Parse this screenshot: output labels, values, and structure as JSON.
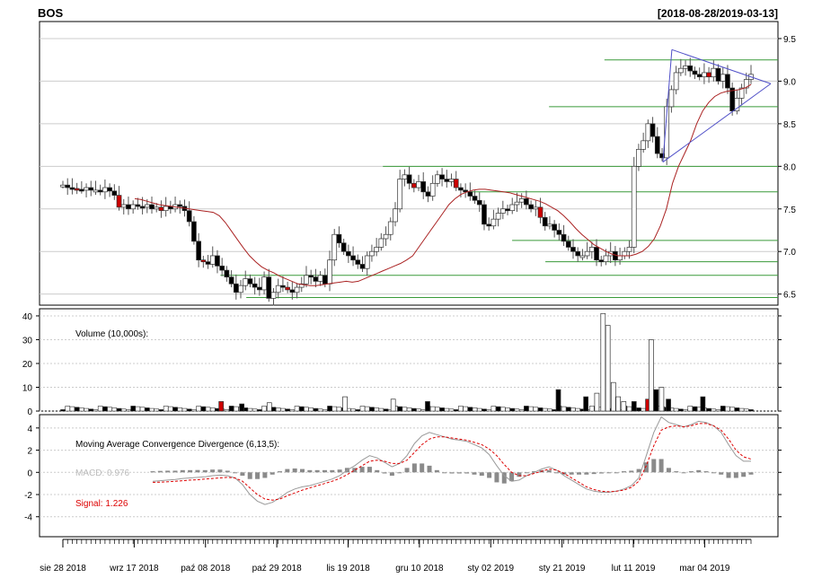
{
  "header": {
    "symbol": "BOS",
    "range": "[2018-08-28/2019-03-13]"
  },
  "chart_data": {
    "type": "candlestick",
    "title": "BOS",
    "date_range": "[2018-08-28/2019-03-13]",
    "x_tick_labels": [
      "sie 28 2018",
      "wrz 17 2018",
      "paź 08 2018",
      "paź 29 2018",
      "lis 19 2018",
      "gru 10 2018",
      "sty 02 2019",
      "sty 21 2019",
      "lut 11 2019",
      "mar 04 2019"
    ],
    "price_panel": {
      "ylim": [
        6.37,
        9.7
      ],
      "y_ticks": [
        6.5,
        7.0,
        7.5,
        8.0,
        8.5,
        9.0,
        9.5
      ],
      "y_tick_labels": [
        "6.5",
        "7.0",
        "7.5",
        "8.0",
        "8.5",
        "9.0",
        "9.5"
      ],
      "grid": true,
      "closes": [
        7.78,
        7.75,
        7.74,
        7.73,
        7.72,
        7.75,
        7.72,
        7.72,
        7.7,
        7.75,
        7.71,
        7.66,
        7.52,
        7.55,
        7.5,
        7.55,
        7.53,
        7.52,
        7.55,
        7.5,
        7.52,
        7.48,
        7.53,
        7.5,
        7.55,
        7.53,
        7.48,
        7.35,
        7.12,
        6.9,
        6.88,
        6.85,
        6.95,
        6.83,
        6.78,
        6.7,
        6.62,
        6.52,
        6.6,
        6.68,
        6.62,
        6.58,
        6.55,
        6.7,
        6.45,
        6.52,
        6.6,
        6.58,
        6.55,
        6.52,
        6.58,
        6.62,
        6.72,
        6.7,
        6.65,
        6.72,
        6.62,
        6.9,
        7.2,
        7.1,
        7.0,
        6.95,
        6.9,
        6.85,
        6.8,
        6.95,
        7.0,
        7.05,
        7.15,
        7.2,
        7.35,
        7.5,
        7.85,
        7.9,
        7.8,
        7.75,
        7.82,
        7.7,
        7.65,
        7.8,
        7.9,
        7.85,
        7.82,
        7.85,
        7.75,
        7.72,
        7.7,
        7.65,
        7.6,
        7.55,
        7.32,
        7.3,
        7.38,
        7.45,
        7.5,
        7.48,
        7.55,
        7.58,
        7.62,
        7.55,
        7.5,
        7.52,
        7.4,
        7.3,
        7.32,
        7.25,
        7.2,
        7.12,
        7.05,
        7.0,
        6.95,
        6.95,
        7.0,
        7.05,
        6.9,
        6.88,
        6.95,
        7.0,
        6.9,
        6.95,
        7.0,
        7.05,
        8.0,
        8.2,
        8.3,
        8.5,
        8.35,
        8.15,
        8.1,
        8.7,
        8.9,
        9.1,
        9.15,
        9.18,
        9.12,
        9.08,
        9.05,
        9.1,
        9.05,
        9.15,
        9.0,
        9.08,
        8.92,
        8.65,
        8.8,
        8.92,
        9.02,
        9.08
      ],
      "signal_line": [
        7.62,
        7.61,
        7.59,
        7.57,
        7.55,
        7.54,
        7.53,
        7.52,
        7.51,
        7.5,
        7.49,
        7.48,
        7.47,
        7.46,
        7.42,
        7.34,
        7.24,
        7.14,
        7.04,
        6.95,
        6.88,
        6.82,
        6.78,
        6.75,
        6.71,
        6.68,
        6.65,
        6.62,
        6.61,
        6.6,
        6.6,
        6.61,
        6.62,
        6.63,
        6.64,
        6.65,
        6.64,
        6.65,
        6.68,
        6.71,
        6.74,
        6.77,
        6.8,
        6.83,
        6.86,
        6.9,
        6.95,
        7.05,
        7.15,
        7.25,
        7.35,
        7.45,
        7.55,
        7.62,
        7.67,
        7.7,
        7.72,
        7.73,
        7.73,
        7.72,
        7.71,
        7.7,
        7.69,
        7.67,
        7.65,
        7.63,
        7.61,
        7.59,
        7.56,
        7.52,
        7.48,
        7.42,
        7.35,
        7.27,
        7.2,
        7.14,
        7.08,
        7.04,
        7.0,
        6.97,
        6.95,
        6.95,
        6.95,
        6.97,
        7.0,
        7.06,
        7.15,
        7.3,
        7.5,
        7.8,
        8.0,
        8.15,
        8.3,
        8.5,
        8.65,
        8.75,
        8.82,
        8.86,
        8.88,
        8.89,
        8.9,
        8.92,
        8.96
      ],
      "support_lines": [
        {
          "value": 9.25,
          "from_frac": 0.765
        },
        {
          "value": 8.7,
          "from_frac": 0.69
        },
        {
          "value": 8.0,
          "from_frac": 0.465
        },
        {
          "value": 7.7,
          "from_frac": 0.58
        },
        {
          "value": 7.13,
          "from_frac": 0.64
        },
        {
          "value": 6.88,
          "from_frac": 0.685
        },
        {
          "value": 6.72,
          "from_frac": 0.245
        },
        {
          "value": 6.46,
          "from_frac": 0.28
        }
      ],
      "triangle": {
        "apex": 8.97,
        "upper_start": 9.37,
        "lower_start": 8.05
      }
    },
    "volume_panel": {
      "label": "Volume (10,000s):",
      "ylim": [
        0,
        43
      ],
      "y_ticks": [
        0,
        10,
        20,
        30,
        40
      ],
      "y_tick_labels": [
        "0",
        "10",
        "20",
        "30",
        "40"
      ],
      "spikes": [
        {
          "pos": 0.23,
          "value": 4,
          "color": "red"
        },
        {
          "pos": 0.26,
          "value": 3,
          "color": "black"
        },
        {
          "pos": 0.3,
          "value": 3.5,
          "color": "white"
        },
        {
          "pos": 0.41,
          "value": 6,
          "color": "white"
        },
        {
          "pos": 0.48,
          "value": 5,
          "color": "white"
        },
        {
          "pos": 0.53,
          "value": 4,
          "color": "black"
        },
        {
          "pos": 0.72,
          "value": 9,
          "color": "black"
        },
        {
          "pos": 0.76,
          "value": 6,
          "color": "black"
        },
        {
          "pos": 0.776,
          "value": 7.5,
          "color": "white"
        },
        {
          "pos": 0.785,
          "value": 41,
          "color": "white"
        },
        {
          "pos": 0.792,
          "value": 36,
          "color": "white"
        },
        {
          "pos": 0.8,
          "value": 12,
          "color": "white"
        },
        {
          "pos": 0.807,
          "value": 6,
          "color": "white"
        },
        {
          "pos": 0.815,
          "value": 4,
          "color": "white"
        },
        {
          "pos": 0.83,
          "value": 4,
          "color": "black"
        },
        {
          "pos": 0.85,
          "value": 5,
          "color": "red"
        },
        {
          "pos": 0.855,
          "value": 30,
          "color": "white"
        },
        {
          "pos": 0.862,
          "value": 9,
          "color": "black"
        },
        {
          "pos": 0.87,
          "value": 10,
          "color": "white"
        },
        {
          "pos": 0.88,
          "value": 5,
          "color": "black"
        },
        {
          "pos": 0.93,
          "value": 6,
          "color": "black"
        }
      ]
    },
    "macd_panel": {
      "title": "Moving Average Convergence Divergence (6,13,5):",
      "macd_label": "MACD: 0.976",
      "signal_label": "Signal: 1.226",
      "ylim": [
        -5.8,
        5.2
      ],
      "y_ticks": [
        -4,
        -2,
        0,
        2,
        4
      ],
      "y_tick_labels": [
        "-4",
        "-2",
        "0",
        "2",
        "4"
      ],
      "macd": [
        -0.8,
        -0.75,
        -0.7,
        -0.65,
        -0.55,
        -0.5,
        -0.45,
        -0.4,
        -0.3,
        -0.25,
        -0.3,
        -0.5,
        -1.1,
        -2.0,
        -2.6,
        -2.9,
        -2.7,
        -2.3,
        -1.8,
        -1.5,
        -1.3,
        -1.2,
        -1.0,
        -0.8,
        -0.6,
        -0.3,
        0.2,
        0.6,
        1.1,
        1.5,
        1.3,
        0.9,
        0.5,
        0.8,
        1.5,
        2.6,
        3.3,
        3.6,
        3.4,
        3.2,
        3.0,
        2.9,
        2.8,
        2.5,
        2.2,
        1.6,
        0.6,
        -0.3,
        -0.8,
        -0.7,
        -0.3,
        0.0,
        0.3,
        0.5,
        0.2,
        -0.3,
        -0.7,
        -1.1,
        -1.5,
        -1.7,
        -1.8,
        -1.8,
        -1.7,
        -1.5,
        -1.2,
        -0.5,
        1.5,
        3.6,
        5.0,
        4.5,
        4.3,
        4.1,
        4.3,
        4.6,
        4.5,
        4.2,
        3.6,
        2.5,
        1.5,
        1.0,
        1.0
      ],
      "signal": [
        -0.9,
        -0.88,
        -0.85,
        -0.8,
        -0.75,
        -0.7,
        -0.66,
        -0.6,
        -0.55,
        -0.5,
        -0.45,
        -0.5,
        -0.8,
        -1.4,
        -2.0,
        -2.4,
        -2.5,
        -2.4,
        -2.1,
        -1.85,
        -1.6,
        -1.4,
        -1.2,
        -1.0,
        -0.8,
        -0.55,
        -0.2,
        0.2,
        0.6,
        1.0,
        1.1,
        1.0,
        0.8,
        0.8,
        1.1,
        1.8,
        2.5,
        3.0,
        3.2,
        3.2,
        3.1,
        3.0,
        2.9,
        2.7,
        2.5,
        2.1,
        1.5,
        0.7,
        0.0,
        -0.3,
        -0.3,
        -0.1,
        0.1,
        0.3,
        0.2,
        -0.1,
        -0.5,
        -0.9,
        -1.3,
        -1.55,
        -1.7,
        -1.75,
        -1.7,
        -1.6,
        -1.35,
        -0.8,
        0.6,
        2.4,
        3.8,
        4.1,
        4.2,
        4.1,
        4.2,
        4.4,
        4.4,
        4.2,
        3.8,
        3.0,
        2.0,
        1.4,
        1.2
      ],
      "histogram": [
        0.1,
        0.13,
        0.15,
        0.15,
        0.2,
        0.2,
        0.21,
        0.2,
        0.25,
        0.25,
        0.15,
        0.0,
        -0.3,
        -0.6,
        -0.6,
        -0.5,
        -0.2,
        0.1,
        0.3,
        0.35,
        0.3,
        0.2,
        0.2,
        0.2,
        0.2,
        0.25,
        0.4,
        0.4,
        0.5,
        0.5,
        0.2,
        -0.1,
        -0.3,
        0.0,
        0.4,
        0.8,
        0.8,
        0.6,
        0.2,
        0.0,
        -0.1,
        -0.1,
        -0.1,
        -0.2,
        -0.3,
        -0.5,
        -0.9,
        -1.0,
        -0.8,
        -0.4,
        0.0,
        0.1,
        0.2,
        0.2,
        0.0,
        -0.2,
        -0.2,
        -0.2,
        -0.2,
        -0.15,
        -0.1,
        -0.05,
        0.0,
        0.1,
        0.15,
        0.3,
        0.9,
        1.2,
        1.2,
        0.4,
        0.1,
        0.0,
        0.1,
        0.2,
        0.1,
        0.0,
        -0.2,
        -0.5,
        -0.5,
        -0.4,
        -0.2
      ]
    },
    "colors": {
      "up_candle": "#ffffff",
      "down_candle": "#000000",
      "red_candle": "#cc0000",
      "signal_line": "#aa2222",
      "support_line": "#3a9a3a",
      "triangle_line": "#5050c8",
      "macd_line": "#999999",
      "macd_signal": "#dd0000",
      "histogram": "#8a8a8a",
      "grid": "#cccccc"
    }
  }
}
